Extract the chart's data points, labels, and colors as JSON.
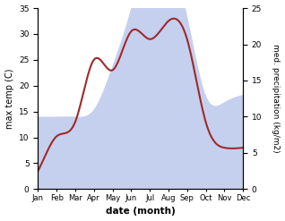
{
  "months": [
    "Jan",
    "Feb",
    "Mar",
    "Apr",
    "May",
    "Jun",
    "Jul",
    "Aug",
    "Sep",
    "Oct",
    "Nov",
    "Dec"
  ],
  "temperature": [
    3.5,
    10.2,
    13.0,
    25.0,
    23.0,
    30.5,
    29.0,
    32.5,
    29.0,
    13.0,
    8.0,
    8.0
  ],
  "precipitation": [
    10.0,
    10.0,
    10.0,
    11.0,
    17.0,
    25.0,
    33.5,
    32.0,
    24.0,
    13.0,
    12.0,
    13.0
  ],
  "temp_color": "#9e2a2a",
  "precip_fill_color": "#c5d0ee",
  "temp_ylim": [
    0,
    35
  ],
  "precip_ylim": [
    0,
    25
  ],
  "temp_yticks": [
    0,
    5,
    10,
    15,
    20,
    25,
    30,
    35
  ],
  "precip_yticks": [
    0,
    5,
    10,
    15,
    20,
    25
  ],
  "xlabel": "date (month)",
  "ylabel_left": "max temp (C)",
  "ylabel_right": "med. precipitation (kg/m2)",
  "figsize": [
    3.18,
    2.47
  ],
  "dpi": 100
}
